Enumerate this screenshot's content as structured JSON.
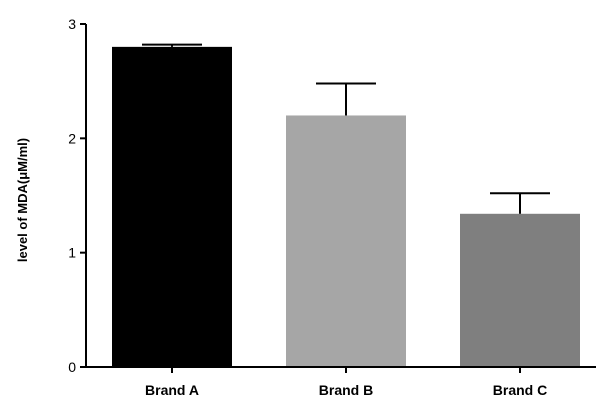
{
  "chart_data": {
    "type": "bar",
    "categories": [
      "Brand A",
      "Brand B",
      "Brand C"
    ],
    "values": [
      2.8,
      2.2,
      1.34
    ],
    "errors": [
      0.02,
      0.28,
      0.18
    ],
    "bar_colors": [
      "#000000",
      "#a6a6a6",
      "#7f7f7f"
    ],
    "title": "",
    "xlabel": "",
    "ylabel": "level of MDA(μM/ml)",
    "ylim": [
      0,
      3
    ],
    "yticks": [
      "0",
      "1",
      "2",
      "3"
    ],
    "grid": false,
    "legend": "none"
  }
}
